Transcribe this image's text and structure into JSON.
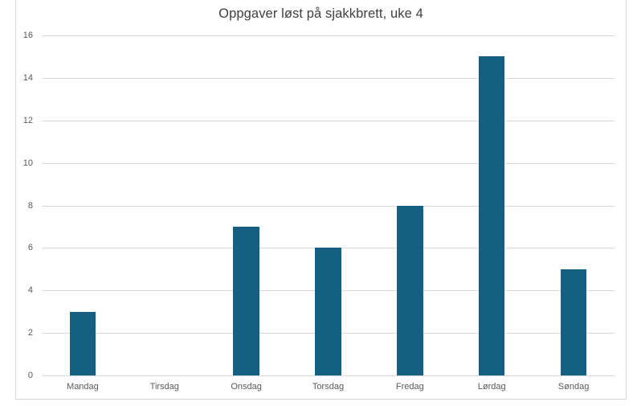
{
  "chart_data": {
    "type": "bar",
    "title": "Oppgaver løst på sjakkbrett, uke 4",
    "categories": [
      "Mandag",
      "Tirsdag",
      "Onsdag",
      "Torsdag",
      "Fredag",
      "Lørdag",
      "Søndag"
    ],
    "values": [
      3,
      0,
      7,
      6,
      8,
      15,
      5
    ],
    "xlabel": "",
    "ylabel": "",
    "ylim": [
      0,
      16
    ],
    "ytick_step": 2,
    "ytick_labels": [
      "0",
      "2",
      "4",
      "6",
      "8",
      "10",
      "12",
      "14",
      "16"
    ],
    "grid": true,
    "legend": false,
    "bar_color": "#156082",
    "gridline_color": "#D9D9D9",
    "axis_line_color": "#D9D9D9",
    "frame_border_color": "#D9D9D9",
    "title_color": "#404040",
    "tick_label_color": "#595959",
    "background_color": "#FFFFFF"
  }
}
